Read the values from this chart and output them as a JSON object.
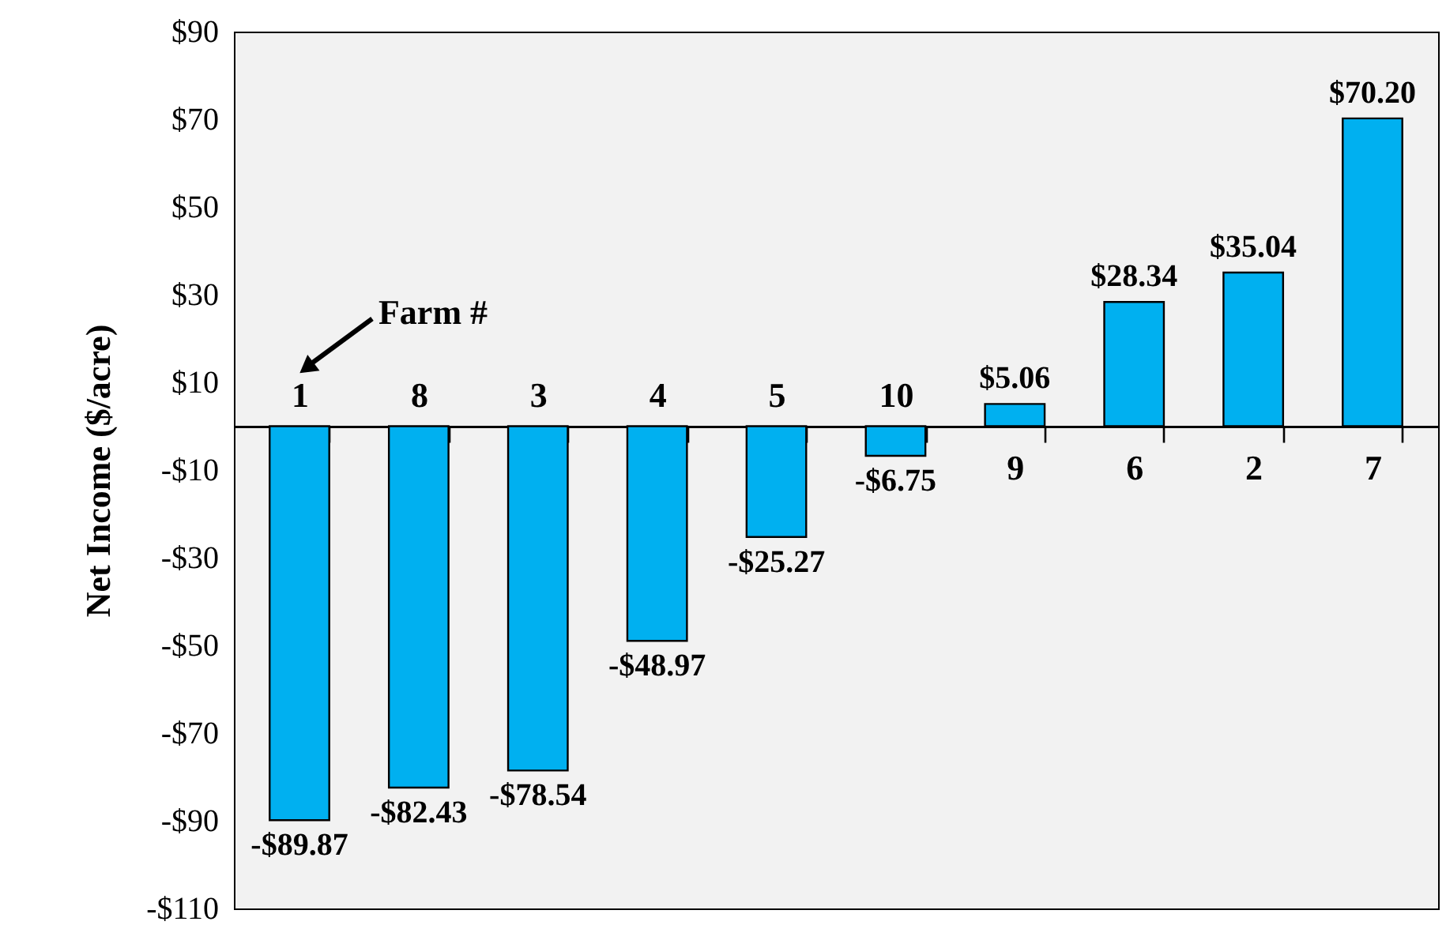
{
  "chart_data": {
    "type": "bar",
    "ylabel": "Net Income ($/acre)",
    "categories": [
      "1",
      "8",
      "3",
      "4",
      "5",
      "10",
      "9",
      "6",
      "2",
      "7"
    ],
    "values": [
      -89.87,
      -82.43,
      -78.54,
      -48.97,
      -25.27,
      -6.75,
      5.06,
      28.34,
      35.04,
      70.2
    ],
    "value_labels": [
      "-$89.87",
      "-$82.43",
      "-$78.54",
      "-$48.97",
      "-$25.27",
      "-$6.75",
      "$5.06",
      "$28.34",
      "$35.04",
      "$70.20"
    ],
    "color": "#00b0f0",
    "ylim": [
      -110,
      90
    ],
    "yticks": [
      {
        "value": -110,
        "label": "-$110"
      },
      {
        "value": -90,
        "label": "-$90"
      },
      {
        "value": -70,
        "label": "-$70"
      },
      {
        "value": -50,
        "label": "-$50"
      },
      {
        "value": -30,
        "label": "-$30"
      },
      {
        "value": -10,
        "label": "-$10"
      },
      {
        "value": 10,
        "label": "$10"
      },
      {
        "value": 30,
        "label": "$30"
      },
      {
        "value": 50,
        "label": "$50"
      },
      {
        "value": 70,
        "label": "$70"
      },
      {
        "value": 90,
        "label": "$90"
      }
    ],
    "annotations": [
      "Farm #"
    ],
    "grid": false
  }
}
